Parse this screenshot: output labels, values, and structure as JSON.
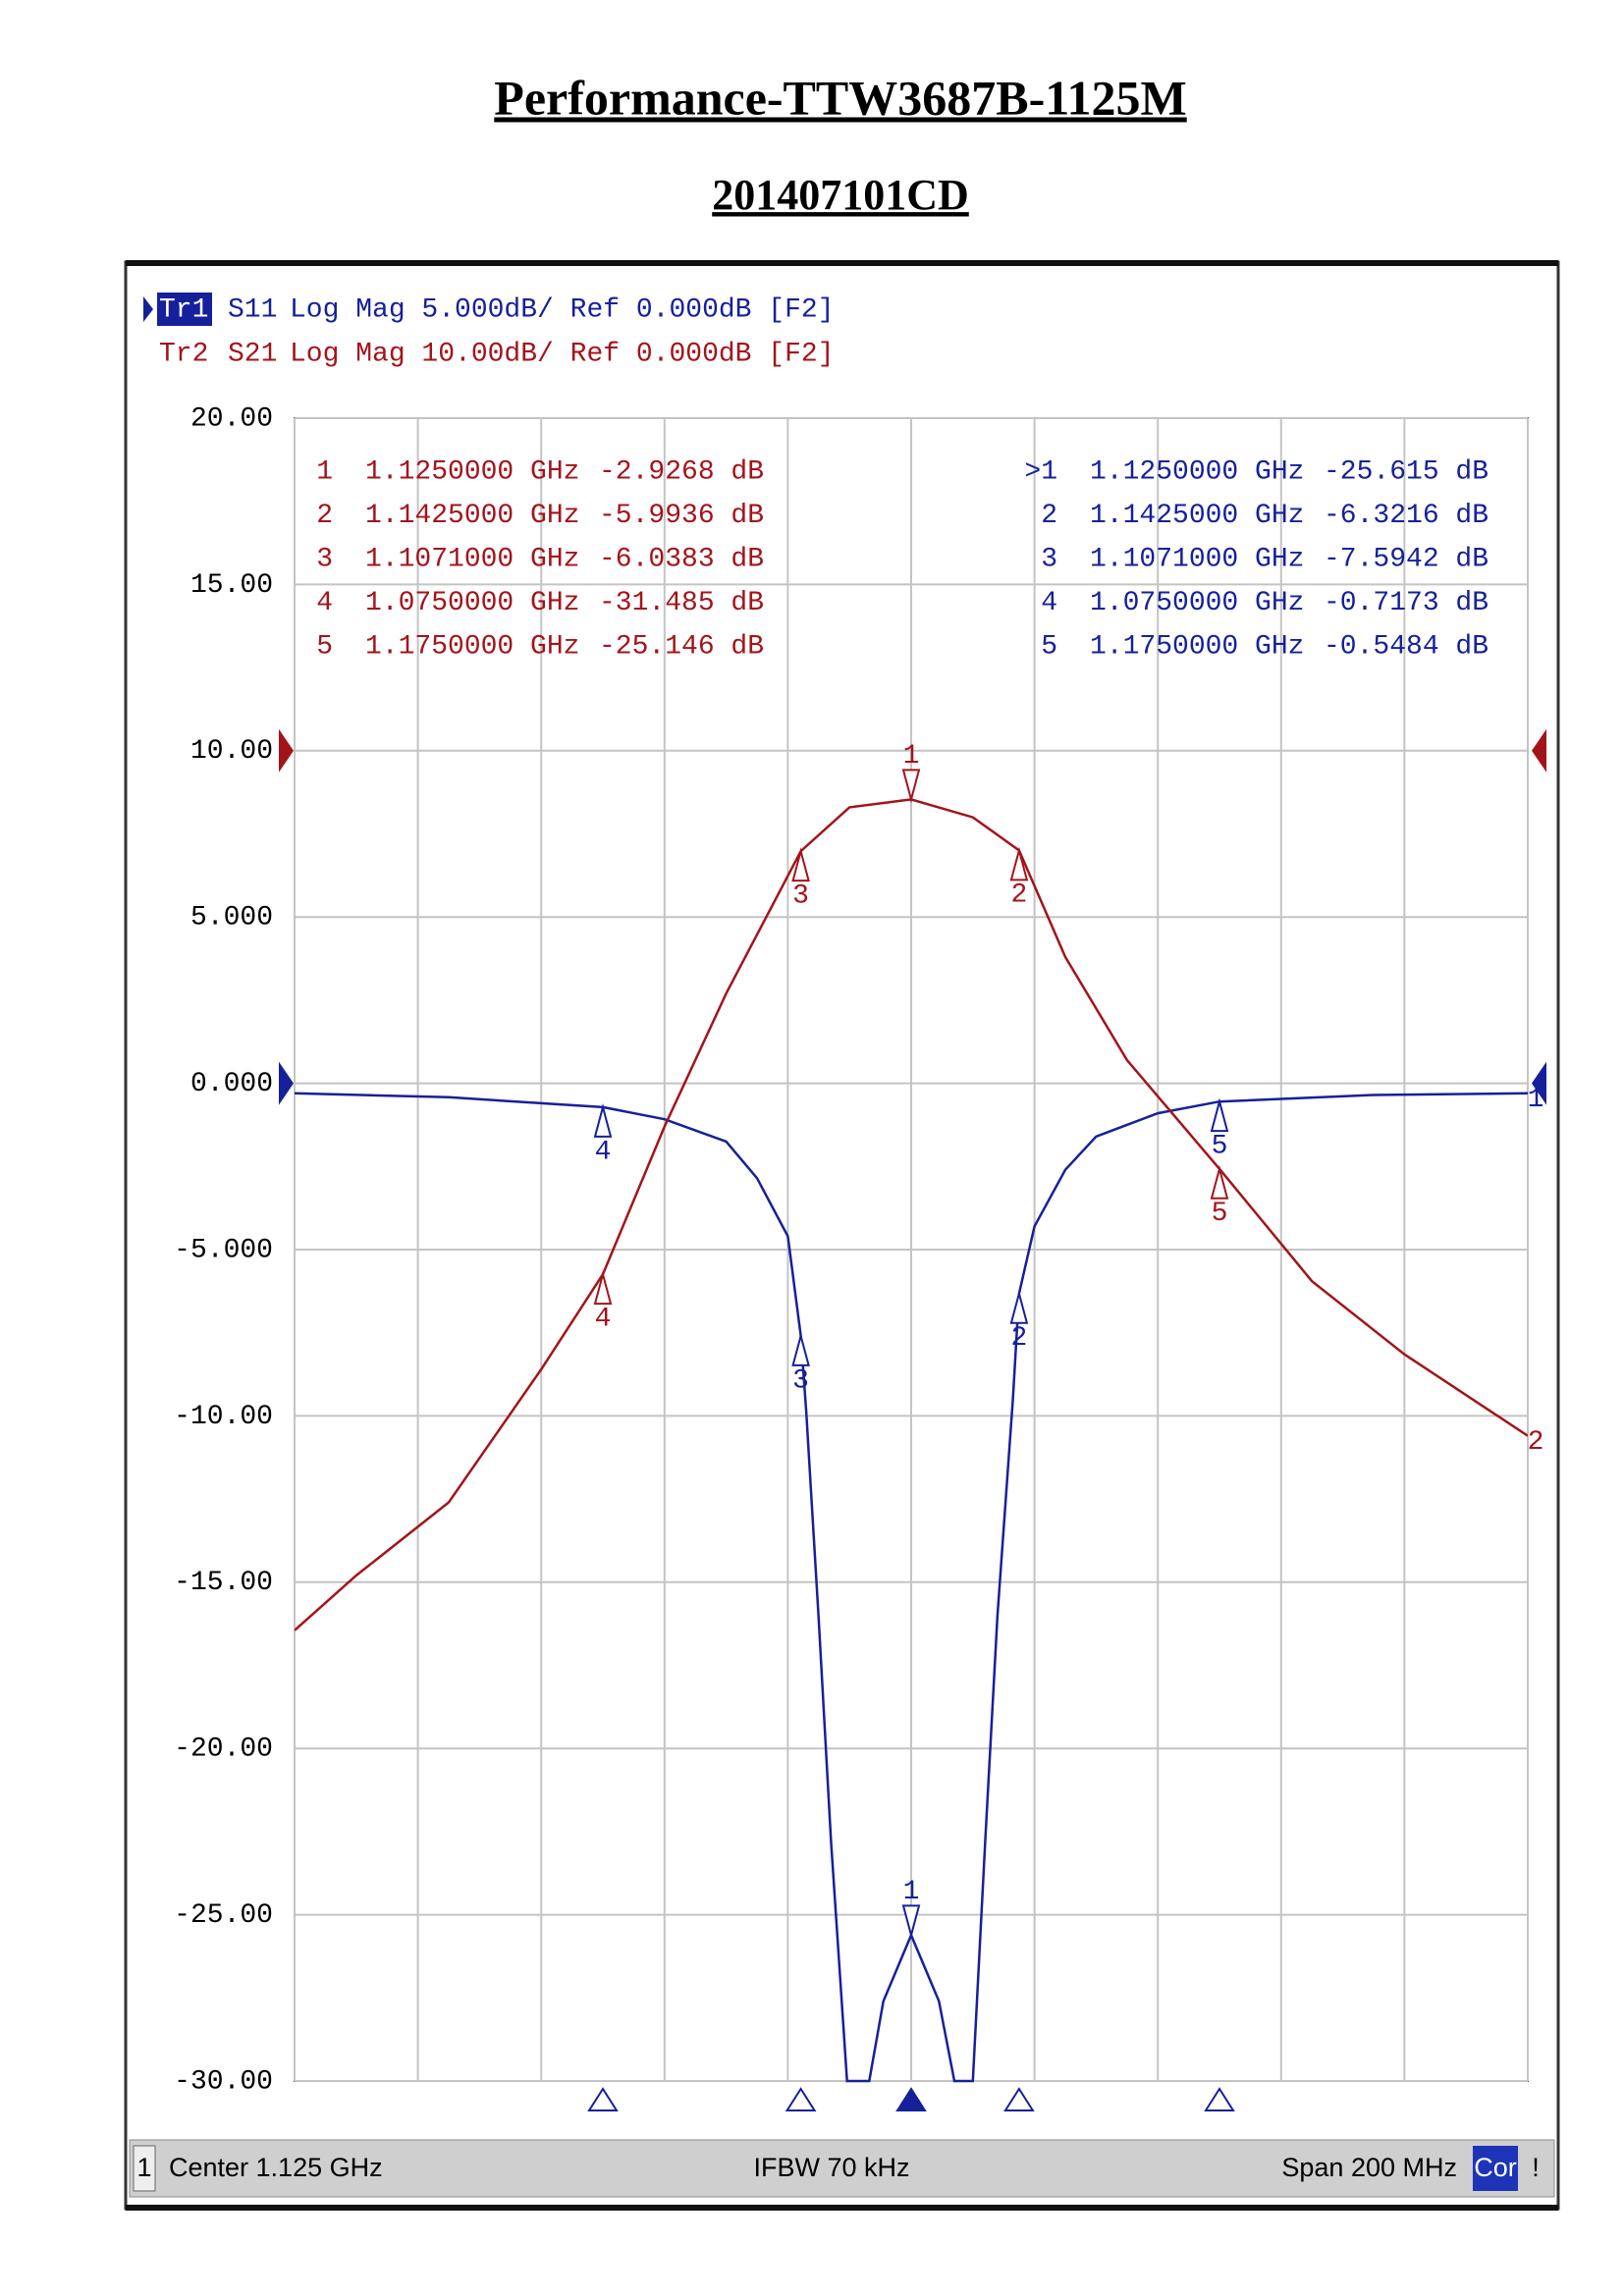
{
  "header": {
    "title": "Performance-TTW3687B-1125M",
    "subtitle": "201407101CD"
  },
  "chart_data": {
    "type": "line",
    "xlim": [
      1.025,
      1.225
    ],
    "xticks": [
      1.025,
      1.045,
      1.065,
      1.085,
      1.105,
      1.125,
      1.145,
      1.165,
      1.185,
      1.205,
      1.225
    ],
    "ylim": [
      -30,
      20
    ],
    "yticks": [
      {
        "value": 20,
        "label": "20.00"
      },
      {
        "value": 15,
        "label": "15.00"
      },
      {
        "value": 10,
        "label": "10.00"
      },
      {
        "value": 5,
        "label": "5.000"
      },
      {
        "value": 0,
        "label": "0.000"
      },
      {
        "value": -5,
        "label": "-5.000"
      },
      {
        "value": -10,
        "label": "-10.00"
      },
      {
        "value": -15,
        "label": "-15.00"
      },
      {
        "value": -20,
        "label": "-20.00"
      },
      {
        "value": -25,
        "label": "-25.00"
      },
      {
        "value": -30,
        "label": "-30.00"
      }
    ],
    "y2lim": [
      -80,
      20
    ],
    "grid": true,
    "series": [
      {
        "trace": "Tr1",
        "name": "S11",
        "header": "Log Mag 5.000dB/ Ref 0.000dB [F2]",
        "ref_level": 0,
        "end_label": "1",
        "active": true,
        "color": "#16209a",
        "x": [
          1.025,
          1.05,
          1.075,
          1.085,
          1.095,
          1.1,
          1.105,
          1.1071,
          1.108,
          1.11,
          1.112,
          1.1146,
          1.1182,
          1.1205,
          1.125,
          1.1295,
          1.132,
          1.135,
          1.137,
          1.139,
          1.1415,
          1.1425,
          1.145,
          1.15,
          1.155,
          1.165,
          1.175,
          1.2,
          1.225
        ],
        "values": [
          -0.3,
          -0.42,
          -0.7173,
          -1.08,
          -1.75,
          -2.85,
          -4.6,
          -7.5942,
          -9.9,
          -16.1,
          -22.8,
          -30,
          -30,
          -27.6,
          -25.615,
          -27.6,
          -30,
          -30,
          -22.8,
          -16,
          -9.5,
          -6.3216,
          -4.3,
          -2.6,
          -1.6,
          -0.9,
          -0.5484,
          -0.35,
          -0.3
        ],
        "markers": [
          {
            "id": "1",
            "row_label": ">1",
            "x": 1.125,
            "x_label": "1.1250000 GHz",
            "y": -25.615,
            "y_label": "-25.615 dB"
          },
          {
            "id": "2",
            "row_label": "2",
            "x": 1.1425,
            "x_label": "1.1425000 GHz",
            "y": -6.3216,
            "y_label": "-6.3216 dB"
          },
          {
            "id": "3",
            "row_label": "3",
            "x": 1.1071,
            "x_label": "1.1071000 GHz",
            "y": -7.5942,
            "y_label": "-7.5942 dB"
          },
          {
            "id": "4",
            "row_label": "4",
            "x": 1.075,
            "x_label": "1.0750000 GHz",
            "y": -0.7173,
            "y_label": "-0.7173 dB"
          },
          {
            "id": "5",
            "row_label": "5",
            "x": 1.175,
            "x_label": "1.1750000 GHz",
            "y": -0.5484,
            "y_label": "-0.5484 dB"
          }
        ]
      },
      {
        "trace": "Tr2",
        "name": "S21",
        "header": "Log Mag 10.00dB/ Ref 0.000dB [F2]",
        "ref_level": 0,
        "end_label": "2",
        "axis": "y2",
        "color": "#a3141a",
        "x": [
          1.025,
          1.035,
          1.05,
          1.065,
          1.075,
          1.085,
          1.095,
          1.1071,
          1.115,
          1.125,
          1.135,
          1.1425,
          1.15,
          1.16,
          1.175,
          1.19,
          1.205,
          1.225
        ],
        "values": [
          -52.9,
          -49.6,
          -45.2,
          -37.2,
          -31.485,
          -22.6,
          -14.6,
          -6.0383,
          -3.4,
          -2.9268,
          -4,
          -5.9936,
          -12.4,
          -18.6,
          -25.146,
          -31.9,
          -36.3,
          -41.2
        ],
        "markers": [
          {
            "id": "1",
            "row_label": "1",
            "x": 1.125,
            "x_label": "1.1250000 GHz",
            "y": -2.9268,
            "y_label": "-2.9268 dB"
          },
          {
            "id": "2",
            "row_label": "2",
            "x": 1.1425,
            "x_label": "1.1425000 GHz",
            "y": -5.9936,
            "y_label": "-5.9936 dB"
          },
          {
            "id": "3",
            "row_label": "3",
            "x": 1.1071,
            "x_label": "1.1071000 GHz",
            "y": -6.0383,
            "y_label": "-6.0383 dB"
          },
          {
            "id": "4",
            "row_label": "4",
            "x": 1.075,
            "x_label": "1.0750000 GHz",
            "y": -31.485,
            "y_label": "-31.485 dB"
          },
          {
            "id": "5",
            "row_label": "5",
            "x": 1.175,
            "x_label": "1.1750000 GHz",
            "y": -25.146,
            "y_label": "-25.146 dB"
          }
        ]
      }
    ],
    "status": {
      "channel": "1",
      "center": "Center 1.125 GHz",
      "ifbw": "IFBW 70 kHz",
      "span": "Span 200 MHz",
      "correction": "Cor",
      "alert": "!"
    }
  }
}
